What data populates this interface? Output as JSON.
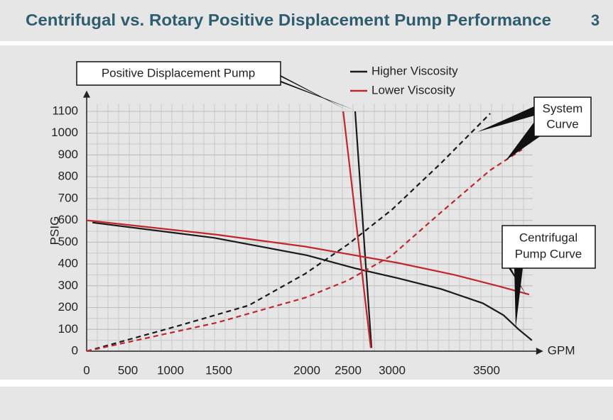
{
  "page_number": "3",
  "chart_data": {
    "type": "line",
    "title": "Centrifugal vs. Rotary Positive Displacement Pump Performance",
    "xlabel": "GPM",
    "ylabel": "PSIG",
    "xlim": [
      0,
      3800
    ],
    "ylim": [
      0,
      1150
    ],
    "xticks": [
      0,
      500,
      1000,
      1500,
      2000,
      2500,
      3000,
      3500
    ],
    "yticks": [
      0,
      100,
      200,
      300,
      400,
      500,
      600,
      700,
      800,
      900,
      1000,
      1100
    ],
    "grid": true,
    "line_styles": {
      "centrifugal": "solid",
      "system": "dashed",
      "positive_displacement": "solid"
    },
    "series": [
      {
        "name": "Higher Viscosity",
        "color": "#1a1a1a",
        "centrifugal": {
          "x": [
            70,
            1450,
            2000,
            2580,
            3030,
            3260,
            3480,
            3590,
            3670,
            3740
          ],
          "y": [
            590,
            520,
            440,
            380,
            335,
            285,
            220,
            165,
            100,
            50
          ]
        },
        "system": {
          "x": [
            0,
            1070,
            1670,
            1990,
            2500,
            3000,
            3256,
            3519
          ],
          "y": [
            0,
            115,
            210,
            355,
            490,
            650,
            860,
            1090
          ]
        },
        "positive_displacement": {
          "x": [
            2581,
            2766
          ],
          "y": [
            1100,
            15
          ]
        }
      },
      {
        "name": "Lower Viscosity",
        "color": "#c0272d",
        "centrifugal": {
          "x": [
            0,
            1470,
            1990,
            2500,
            3030,
            3330,
            3556,
            3725
          ],
          "y": [
            600,
            535,
            480,
            445,
            405,
            350,
            300,
            260
          ]
        },
        "system": {
          "x": [
            0,
            1470,
            1990,
            2500,
            3000,
            3256,
            3519,
            3688
          ],
          "y": [
            0,
            130,
            245,
            325,
            440,
            635,
            830,
            925
          ]
        },
        "positive_displacement": {
          "x": [
            2441,
            2758
          ],
          "y": [
            1100,
            15
          ]
        }
      }
    ],
    "annotations": [
      {
        "lines": [
          "Positive Displacement Pump"
        ]
      },
      {
        "lines": [
          "System",
          "Curve"
        ]
      },
      {
        "lines": [
          "Centrifugal",
          "Pump Curve"
        ]
      }
    ]
  }
}
